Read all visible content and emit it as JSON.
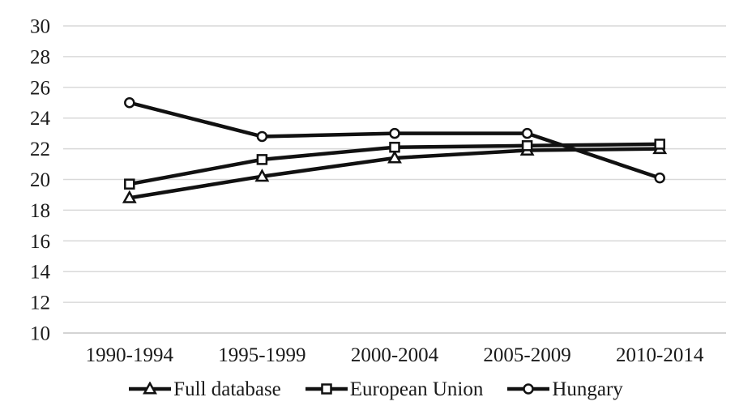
{
  "chart_data": {
    "type": "line",
    "title": "",
    "xlabel": "",
    "ylabel": "",
    "categories": [
      "1990-1994",
      "1995-1999",
      "2000-2004",
      "2005-2009",
      "2010-2014"
    ],
    "series": [
      {
        "name": "Full database",
        "marker": "triangle",
        "values": [
          18.8,
          20.2,
          21.4,
          21.9,
          22.0
        ]
      },
      {
        "name": "European Union",
        "marker": "square",
        "values": [
          19.7,
          21.3,
          22.1,
          22.2,
          22.3
        ]
      },
      {
        "name": "Hungary",
        "marker": "circle",
        "values": [
          25.0,
          22.8,
          23.0,
          23.0,
          20.1
        ]
      }
    ],
    "ylim": [
      10,
      30
    ],
    "y_ticks": [
      10,
      12,
      14,
      16,
      18,
      20,
      22,
      24,
      26,
      28,
      30
    ],
    "grid": true,
    "legend_position": "bottom",
    "colors": {
      "line": "#111111",
      "marker_fill": "#ffffff",
      "gridline": "#d9d9d9",
      "axis_line": "#c6c6c6",
      "text": "#1a1a1a",
      "background": "#ffffff"
    }
  }
}
